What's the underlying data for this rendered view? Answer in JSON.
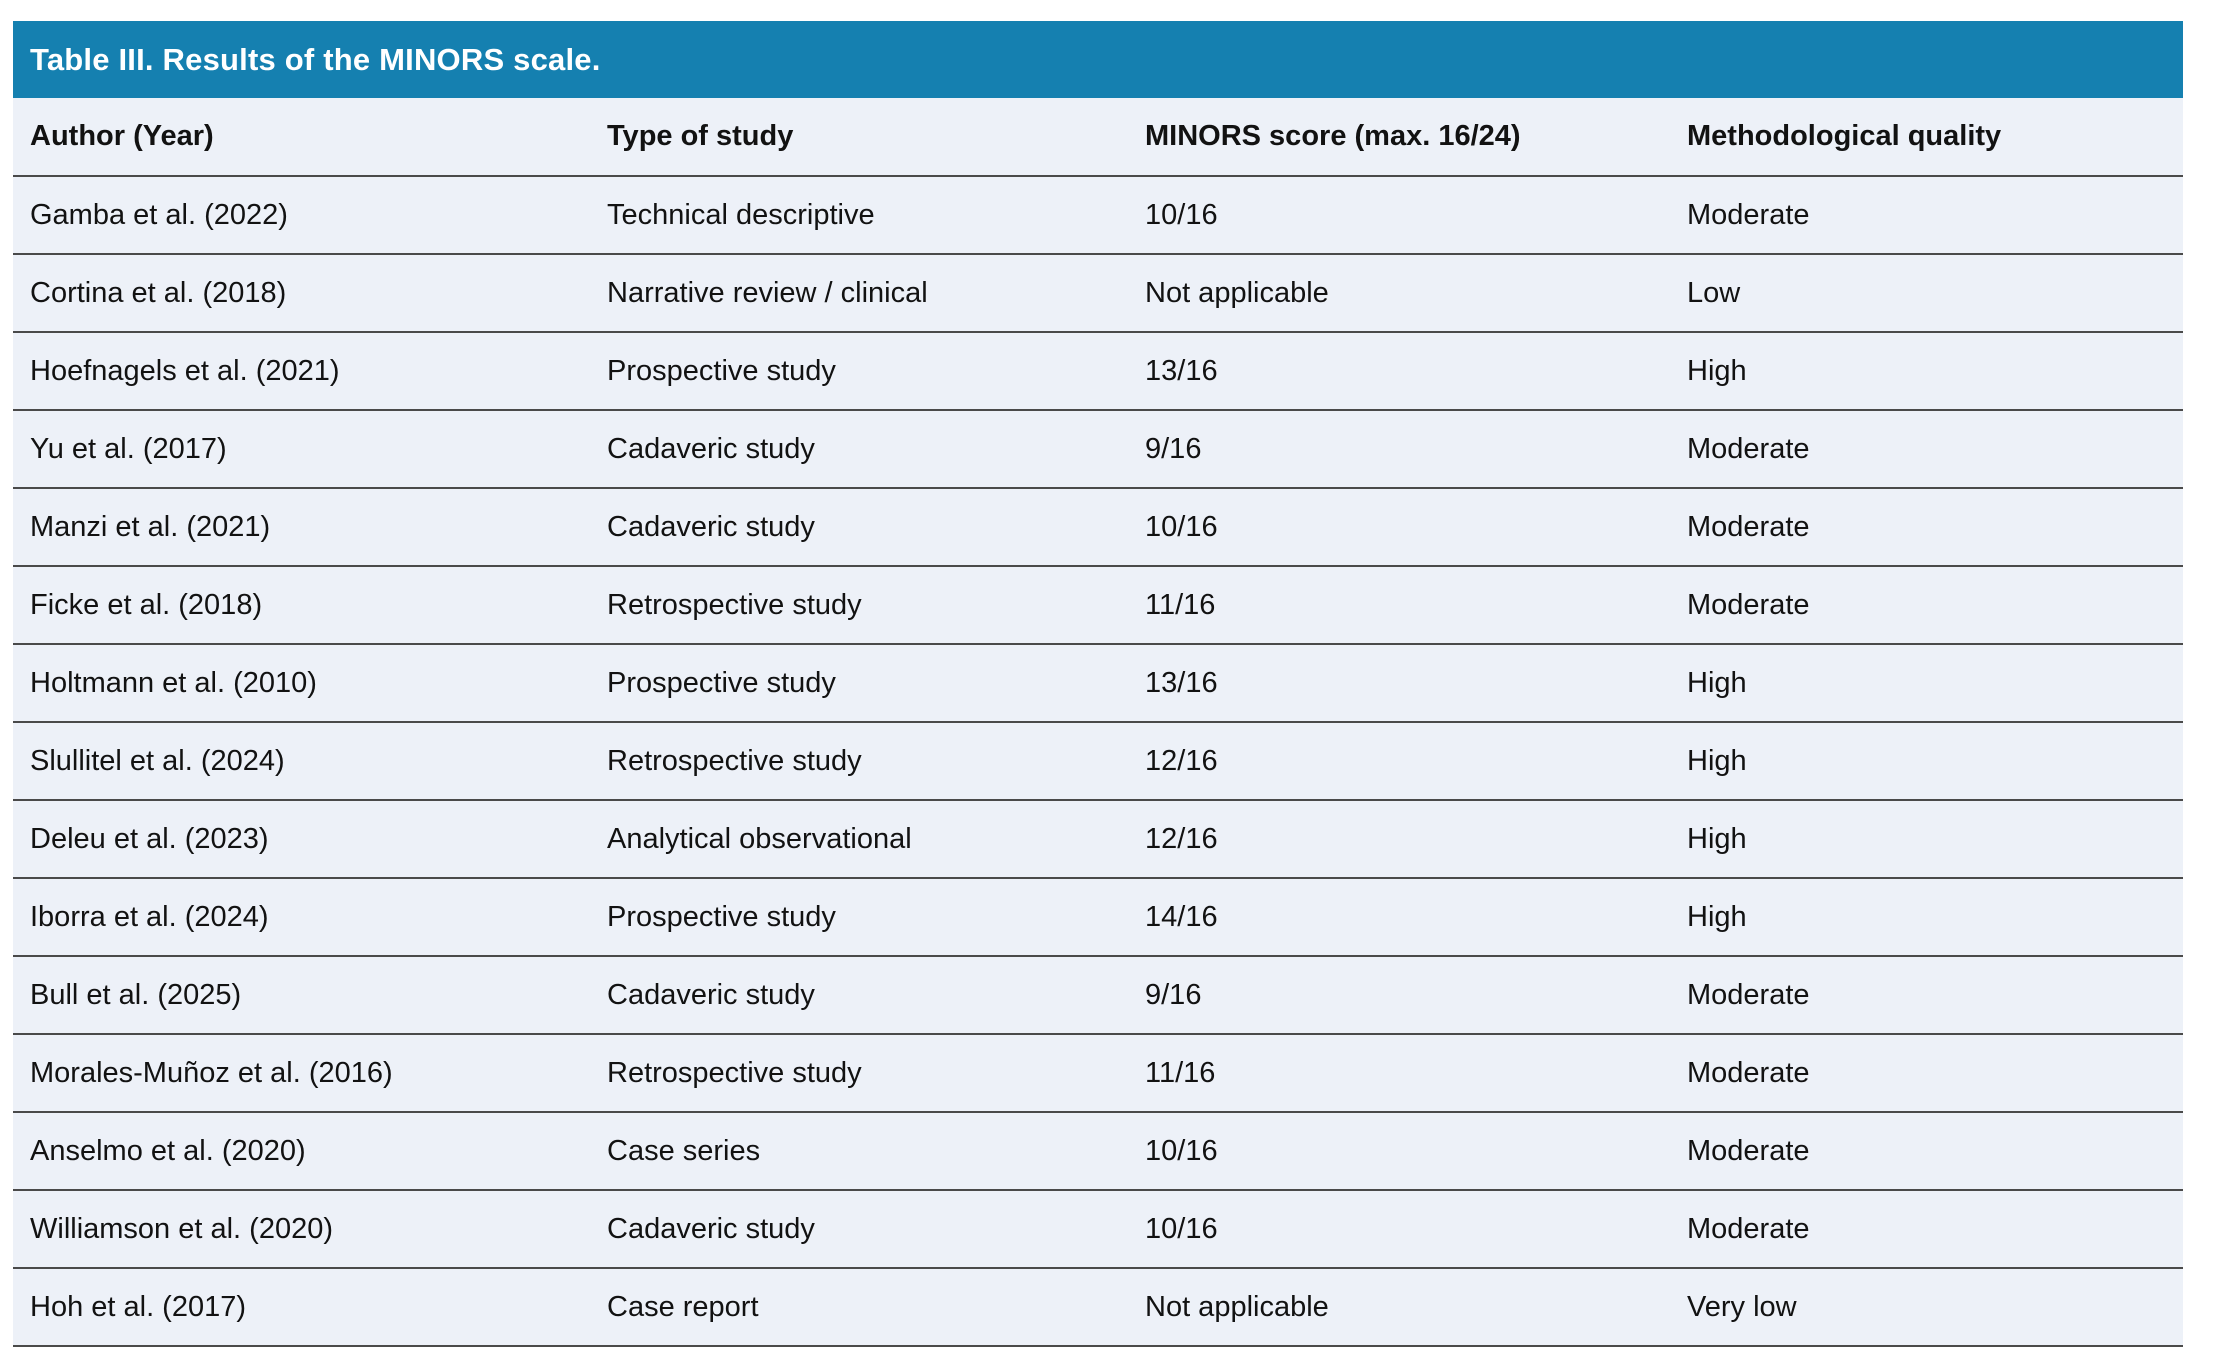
{
  "table": {
    "title": "Table III. Results of the MINORS scale.",
    "columns": [
      "Author (Year)",
      "Type of study",
      "MINORS score (max. 16/24)",
      "Methodological quality"
    ],
    "rows": [
      [
        "Gamba et al. (2022)",
        "Technical descriptive",
        "10/16",
        "Moderate"
      ],
      [
        "Cortina et al. (2018)",
        "Narrative review / clinical",
        "Not applicable",
        "Low"
      ],
      [
        "Hoefnagels et al. (2021)",
        "Prospective study",
        "13/16",
        "High"
      ],
      [
        "Yu et al. (2017)",
        "Cadaveric study",
        "9/16",
        "Moderate"
      ],
      [
        "Manzi et al. (2021)",
        "Cadaveric study",
        "10/16",
        "Moderate"
      ],
      [
        "Ficke et al. (2018)",
        "Retrospective study",
        "11/16",
        "Moderate"
      ],
      [
        "Holtmann et al. (2010)",
        "Prospective study",
        "13/16",
        "High"
      ],
      [
        "Slullitel et al. (2024)",
        "Retrospective study",
        "12/16",
        "High"
      ],
      [
        "Deleu et al. (2023)",
        "Analytical observational",
        "12/16",
        "High"
      ],
      [
        "Iborra et al. (2024)",
        "Prospective study",
        "14/16",
        "High"
      ],
      [
        "Bull et al. (2025)",
        "Cadaveric study",
        "9/16",
        "Moderate"
      ],
      [
        "Morales-Muñoz et al. (2016)",
        "Retrospective study",
        "11/16",
        "Moderate"
      ],
      [
        "Anselmo et al. (2020)",
        "Case series",
        "10/16",
        "Moderate"
      ],
      [
        "Williamson et al. (2020)",
        "Cadaveric study",
        "10/16",
        "Moderate"
      ],
      [
        "Hoh et al. (2017)",
        "Case report",
        "Not applicable",
        "Very low"
      ]
    ]
  },
  "colors": {
    "title_bar": "#1580b0",
    "title_text": "#ffffff",
    "row_background": "#edf1f8",
    "separator_line": "#4a4a4a",
    "body_text": "#121212"
  }
}
